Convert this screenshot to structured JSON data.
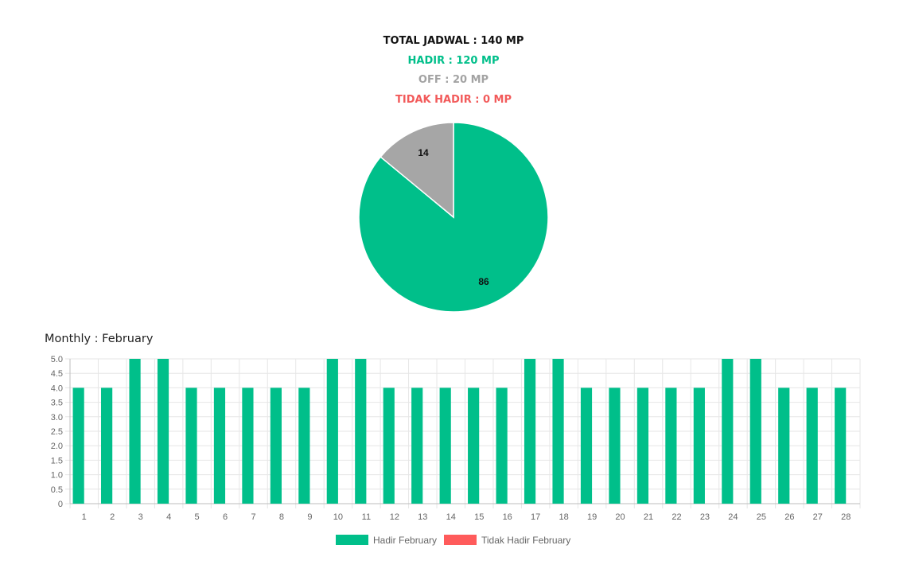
{
  "summary": {
    "total": "TOTAL JADWAL : 140 MP",
    "hadir": "HADIR : 120 MP",
    "off": "OFF : 20 MP",
    "tidak_hadir": "TIDAK HADIR : 0 MP"
  },
  "colors": {
    "hadir": "#00bf8a",
    "off": "#a6a6a6",
    "tidak_hadir": "#ff5b5b",
    "grid": "#e6e6e6",
    "axis_text": "#666666"
  },
  "chart_data": [
    {
      "type": "pie",
      "labels": [
        "86",
        "14"
      ],
      "values": [
        86,
        14
      ],
      "slice_colors": [
        "#00bf8a",
        "#a6a6a6"
      ]
    },
    {
      "type": "bar",
      "title": "Monthly : February",
      "categories": [
        "1",
        "2",
        "3",
        "4",
        "5",
        "6",
        "7",
        "8",
        "9",
        "10",
        "11",
        "12",
        "13",
        "14",
        "15",
        "16",
        "17",
        "18",
        "19",
        "20",
        "21",
        "22",
        "23",
        "24",
        "25",
        "26",
        "27",
        "28"
      ],
      "series": [
        {
          "name": "Hadir February",
          "values": [
            4,
            4,
            5,
            5,
            4,
            4,
            4,
            4,
            4,
            5,
            5,
            4,
            4,
            4,
            4,
            4,
            5,
            5,
            4,
            4,
            4,
            4,
            4,
            5,
            5,
            4,
            4,
            4
          ]
        },
        {
          "name": "Tidak Hadir February",
          "values": [
            0,
            0,
            0,
            0,
            0,
            0,
            0,
            0,
            0,
            0,
            0,
            0,
            0,
            0,
            0,
            0,
            0,
            0,
            0,
            0,
            0,
            0,
            0,
            0,
            0,
            0,
            0,
            0
          ]
        }
      ],
      "yticks": [
        "0",
        "0.5",
        "1.0",
        "1.5",
        "2.0",
        "2.5",
        "3.0",
        "3.5",
        "4.0",
        "4.5",
        "5.0"
      ],
      "ylim": [
        0,
        5
      ],
      "grid": true,
      "legend": "bottom"
    }
  ]
}
